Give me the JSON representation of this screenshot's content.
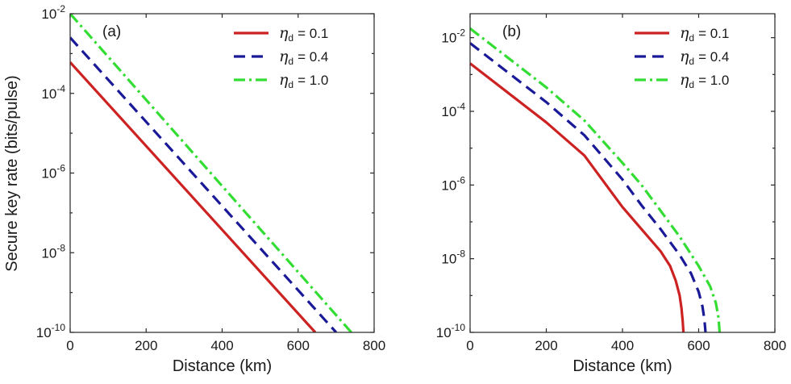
{
  "figure": {
    "ylabel": "Secure key rate (bits/pulse)",
    "xlabel": "Distance (km)"
  },
  "chart_data": [
    {
      "type": "line",
      "panel_label": "(a)",
      "xlabel": "Distance (km)",
      "ylabel": "Secure key rate (bits/pulse)",
      "xlim": [
        0,
        800
      ],
      "ylim_log10": [
        -10,
        -2
      ],
      "yscale": "log",
      "xticks": [
        0,
        200,
        400,
        600,
        800
      ],
      "xtick_labels": [
        "0",
        "200",
        "400",
        "600",
        "800"
      ],
      "yticks_log10": [
        -10,
        -8,
        -6,
        -4,
        -2
      ],
      "ytick_labels": [
        {
          "base": "10",
          "exp": "-10"
        },
        {
          "base": "10",
          "exp": "-8"
        },
        {
          "base": "10",
          "exp": "-6"
        },
        {
          "base": "10",
          "exp": "-4"
        },
        {
          "base": "10",
          "exp": "-2"
        }
      ],
      "legend_position": "top-right",
      "series": [
        {
          "name": "ηd = 0.1",
          "legend_symbol": "η",
          "legend_sub": "d",
          "legend_value": "=  0.1",
          "color": "#cc2222",
          "style": "solid",
          "x": [
            0,
            645
          ],
          "log10_y": [
            -3.22,
            -10
          ]
        },
        {
          "name": "ηd = 0.4",
          "legend_symbol": "η",
          "legend_sub": "d",
          "legend_value": "=  0.4",
          "color": "#1a1a99",
          "style": "dashed",
          "x": [
            0,
            700
          ],
          "log10_y": [
            -2.6,
            -10
          ]
        },
        {
          "name": "ηd = 1.0",
          "legend_symbol": "η",
          "legend_sub": "d",
          "legend_value": "=  1.0",
          "color": "#33dd33",
          "style": "dashdot",
          "x": [
            0,
            740
          ],
          "log10_y": [
            -2.0,
            -10
          ]
        }
      ]
    },
    {
      "type": "line",
      "panel_label": "(b)",
      "xlabel": "Distance (km)",
      "ylabel": "",
      "xlim": [
        0,
        800
      ],
      "ylim_log10": [
        -10,
        -1.35
      ],
      "yscale": "log",
      "xticks": [
        0,
        200,
        400,
        600,
        800
      ],
      "xtick_labels": [
        "0",
        "200",
        "400",
        "600",
        "800"
      ],
      "yticks_log10": [
        -10,
        -8,
        -6,
        -4,
        -2
      ],
      "ytick_labels": [
        {
          "base": "10",
          "exp": "-10"
        },
        {
          "base": "10",
          "exp": "-8"
        },
        {
          "base": "10",
          "exp": "-6"
        },
        {
          "base": "10",
          "exp": "-4"
        },
        {
          "base": "10",
          "exp": "-2"
        }
      ],
      "legend_position": "top-right",
      "series": [
        {
          "name": "ηd = 0.1",
          "legend_symbol": "η",
          "legend_sub": "d",
          "legend_value": "=  0.1",
          "color": "#cc2222",
          "style": "solid",
          "x": [
            0,
            100,
            200,
            300,
            400,
            450,
            500,
            525,
            540,
            550,
            555,
            558,
            560
          ],
          "log10_y": [
            -2.7,
            -3.5,
            -4.3,
            -5.2,
            -6.6,
            -7.2,
            -7.8,
            -8.2,
            -8.6,
            -9.0,
            -9.35,
            -9.7,
            -10
          ]
        },
        {
          "name": "ηd = 0.4",
          "legend_symbol": "η",
          "legend_sub": "d",
          "legend_value": "=  0.4",
          "color": "#1a1a99",
          "style": "dashed",
          "x": [
            0,
            100,
            200,
            300,
            400,
            450,
            500,
            550,
            580,
            600,
            610,
            615,
            618
          ],
          "log10_y": [
            -2.15,
            -2.95,
            -3.75,
            -4.65,
            -5.85,
            -6.55,
            -7.2,
            -7.9,
            -8.4,
            -8.9,
            -9.3,
            -9.65,
            -10
          ]
        },
        {
          "name": "ηd = 1.0",
          "legend_symbol": "η",
          "legend_sub": "d",
          "legend_value": "=  1.0",
          "color": "#33dd33",
          "style": "dashdot",
          "x": [
            0,
            100,
            200,
            300,
            400,
            450,
            500,
            550,
            600,
            630,
            645,
            652,
            655
          ],
          "log10_y": [
            -1.75,
            -2.55,
            -3.35,
            -4.25,
            -5.4,
            -6.0,
            -6.7,
            -7.4,
            -8.2,
            -8.75,
            -9.2,
            -9.6,
            -10
          ]
        }
      ]
    }
  ]
}
